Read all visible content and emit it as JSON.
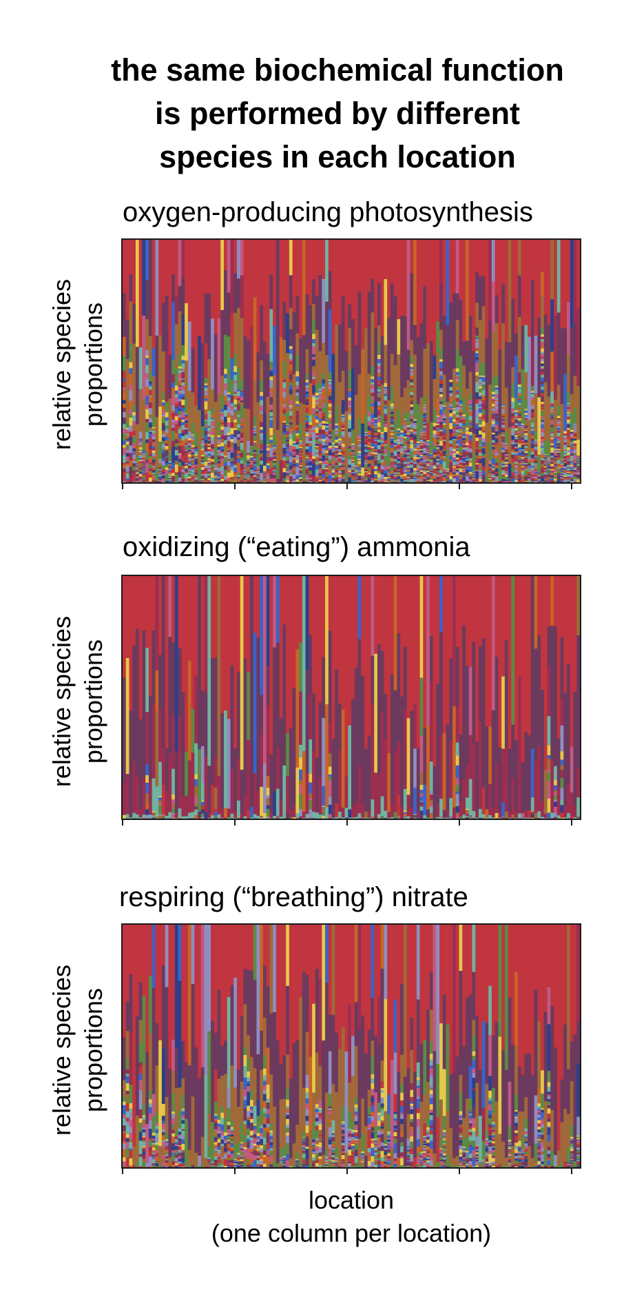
{
  "title_lines": [
    "the same biochemical function",
    "is performed by different",
    "species in each location"
  ],
  "xlabel_lines": [
    "location",
    "(one column per location)"
  ],
  "palette": [
    "#c0353f",
    "#6b3a5e",
    "#a0693a",
    "#e6c84a",
    "#3a64c8",
    "#6fb3a0",
    "#5c8a45",
    "#c05a82",
    "#8e8ec0",
    "#c86428",
    "#2e3f8a",
    "#9a2f50"
  ],
  "chart_data": [
    {
      "type": "bar",
      "stacked": true,
      "normalized": true,
      "title": "oxygen-producing photosynthesis",
      "ylabel_lines": [
        "relative species",
        "proportions"
      ],
      "xlabel": "",
      "ylim": [
        0,
        1
      ],
      "n_locations": 140,
      "x_ticks": 5,
      "dominant_color_order": [
        "#c0353f",
        "#6b3a5e",
        "#a0693a",
        "#5c8a45",
        "#e6c84a",
        "#3a64c8",
        "#6fb3a0",
        "#c05a82",
        "#8e8ec0",
        "#c86428"
      ],
      "top_fraction": [
        0.3,
        0.22,
        0.16,
        0.05
      ],
      "n_species_per_location": [
        10,
        70
      ],
      "seed": 11
    },
    {
      "type": "bar",
      "stacked": true,
      "normalized": true,
      "title": "oxidizing (“eating”) ammonia",
      "ylabel_lines": [
        "relative species",
        "proportions"
      ],
      "xlabel": "",
      "ylim": [
        0,
        1
      ],
      "n_locations": 140,
      "x_ticks": 5,
      "dominant_color_order": [
        "#c0353f",
        "#6b3a5e",
        "#9a2f50",
        "#6fb3a0",
        "#e6c84a",
        "#3a64c8",
        "#a0693a",
        "#c05a82",
        "#5c8a45",
        "#8e8ec0"
      ],
      "top_fraction": [
        0.5,
        0.4,
        0.25,
        0.1
      ],
      "n_species_per_location": [
        6,
        16
      ],
      "seed": 23
    },
    {
      "type": "bar",
      "stacked": true,
      "normalized": true,
      "title": "respiring (“breathing”) nitrate",
      "ylabel_lines": [
        "relative species",
        "proportions"
      ],
      "xlabel": "location (one column per location)",
      "ylim": [
        0,
        1
      ],
      "n_locations": 140,
      "x_ticks": 5,
      "dominant_color_order": [
        "#c0353f",
        "#6b3a5e",
        "#a0693a",
        "#5c8a45",
        "#e6c84a",
        "#6fb3a0",
        "#3a64c8",
        "#c05a82",
        "#8e8ec0",
        "#2e3f8a"
      ],
      "top_fraction": [
        0.4,
        0.3,
        0.15,
        0.05
      ],
      "n_species_per_location": [
        8,
        40
      ],
      "seed": 37
    }
  ]
}
